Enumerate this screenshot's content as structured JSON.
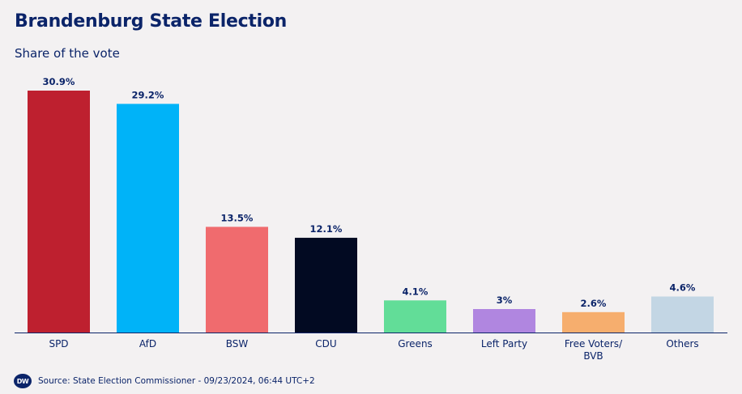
{
  "title": "Brandenburg State Election",
  "subtitle": "Share of the vote",
  "source": "Source: State Election Commissioner - 09/23/2024, 06:44 UTC+2",
  "logo_text": "DW",
  "chart_data": {
    "type": "bar",
    "categories": [
      "SPD",
      "AfD",
      "BSW",
      "CDU",
      "Greens",
      "Left Party",
      [
        "Free Voters/",
        "BVB"
      ],
      "Others"
    ],
    "values": [
      30.9,
      29.2,
      13.5,
      12.1,
      4.1,
      3,
      2.6,
      4.6
    ],
    "value_labels": [
      "30.9%",
      "29.2%",
      "13.5%",
      "12.1%",
      "4.1%",
      "3%",
      "2.6%",
      "4.6%"
    ],
    "colors": [
      "#be202f",
      "#00b3f8",
      "#f06b6e",
      "#020a22",
      "#62dd98",
      "#b086e0",
      "#f6ae6e",
      "#c3d6e4"
    ],
    "ylim": [
      0,
      30.9
    ],
    "grid": false,
    "legend": "none"
  }
}
